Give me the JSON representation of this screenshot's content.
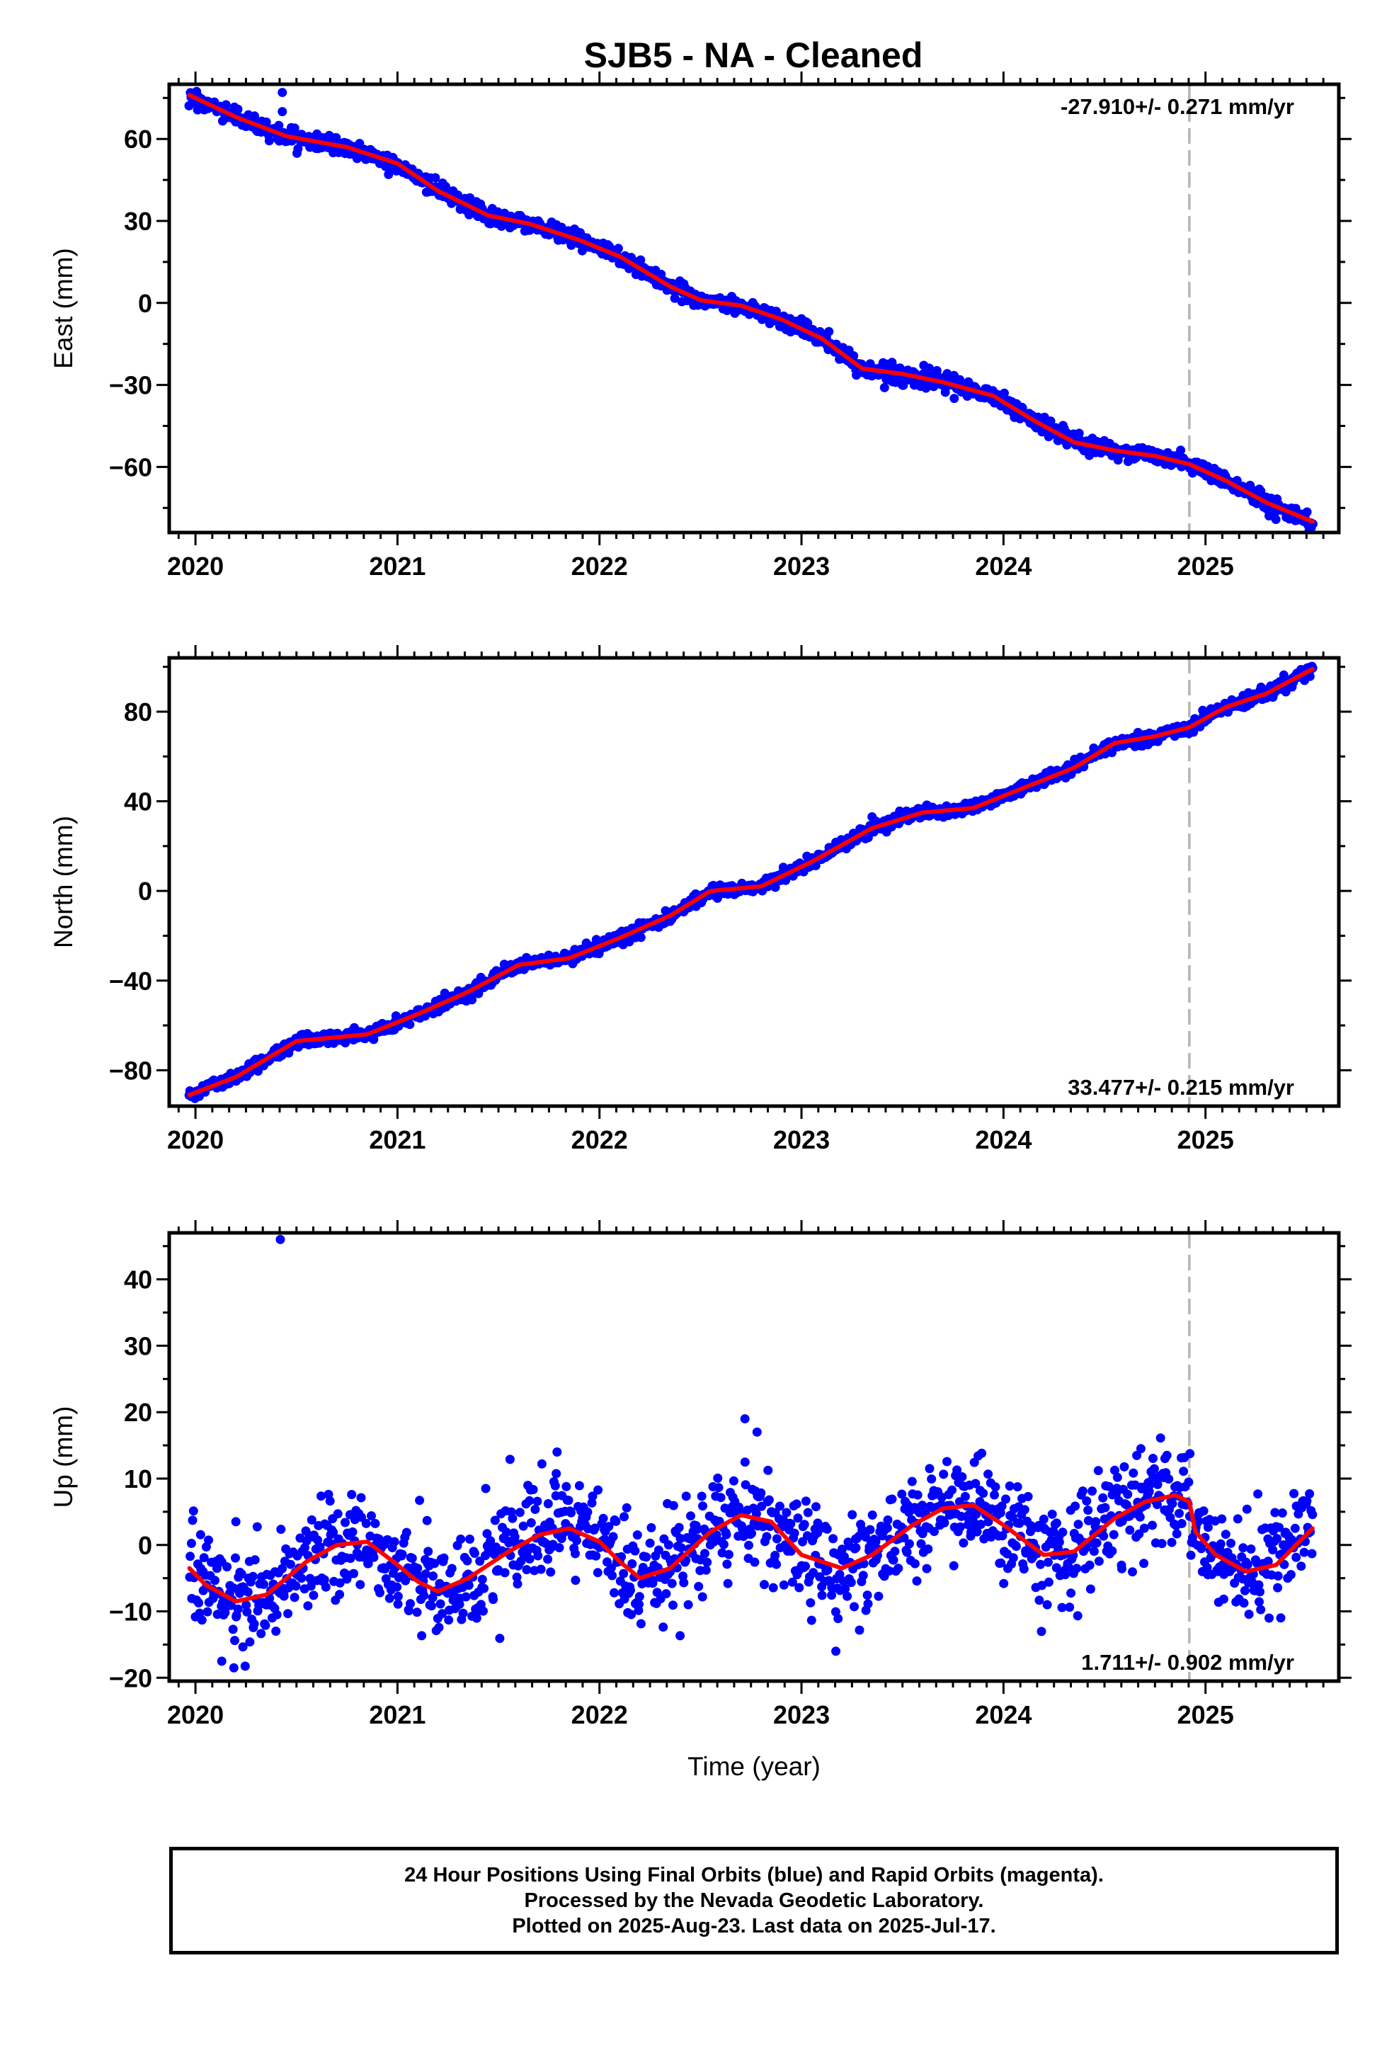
{
  "title": "SJB5  - NA - Cleaned",
  "colors": {
    "points": "#0000ff",
    "fit": "#ff0000",
    "vline": "#b5b5b5",
    "frame": "#000000"
  },
  "footer": {
    "lines": [
      "24 Hour Positions Using Final Orbits (blue) and Rapid Orbits (magenta).",
      "Processed by the Nevada Geodetic Laboratory.",
      "Plotted on 2025-Aug-23. Last data on 2025-Jul-17."
    ]
  },
  "chart_data": [
    {
      "type": "scatter",
      "ylabel": "East (mm)",
      "xlabel": "",
      "xlim": [
        2019.87,
        2025.66
      ],
      "ylim": [
        -84,
        80
      ],
      "xticks": [
        2020,
        2021,
        2022,
        2023,
        2024,
        2025
      ],
      "yticks": [
        -60,
        -30,
        0,
        30,
        60
      ],
      "yticks_minor": [
        -75,
        -45,
        -15,
        15,
        45,
        75
      ],
      "rate_label": "-27.910+/- 0.271 mm/yr",
      "rate_position": "top-right",
      "vline_x": 2024.92,
      "fit": {
        "name": "",
        "x": [
          2019.97,
          2020.2,
          2020.45,
          2020.75,
          2021.0,
          2021.2,
          2021.45,
          2021.65,
          2021.9,
          2022.1,
          2022.35,
          2022.5,
          2022.7,
          2022.9,
          2023.1,
          2023.3,
          2023.5,
          2023.7,
          2023.95,
          2024.15,
          2024.35,
          2024.55,
          2024.75,
          2024.92,
          2025.1,
          2025.3,
          2025.53
        ],
        "y": [
          76,
          68,
          61,
          57,
          51,
          41,
          32,
          29,
          23,
          17,
          6,
          1,
          -1,
          -6,
          -13,
          -24,
          -26,
          -29,
          -34,
          -43,
          -51,
          -54,
          -56,
          -59,
          -65,
          -73,
          -80
        ]
      },
      "outliers": [
        {
          "x": 2020.43,
          "y": 77
        },
        {
          "x": 2020.43,
          "y": 70
        }
      ],
      "scatter_noise": 1.4
    },
    {
      "type": "scatter",
      "ylabel": "North (mm)",
      "xlabel": "",
      "xlim": [
        2019.87,
        2025.66
      ],
      "ylim": [
        -96,
        104
      ],
      "xticks": [
        2020,
        2021,
        2022,
        2023,
        2024,
        2025
      ],
      "yticks": [
        -80,
        -40,
        0,
        40,
        80
      ],
      "yticks_minor": [
        -60,
        -20,
        20,
        60,
        100
      ],
      "rate_label": "33.477+/- 0.215 mm/yr",
      "rate_position": "bottom-right",
      "vline_x": 2024.92,
      "fit": {
        "name": "",
        "x": [
          2019.97,
          2020.2,
          2020.5,
          2020.85,
          2021.1,
          2021.35,
          2021.6,
          2021.85,
          2022.1,
          2022.35,
          2022.55,
          2022.8,
          2023.05,
          2023.35,
          2023.6,
          2023.85,
          2024.1,
          2024.35,
          2024.55,
          2024.75,
          2024.92,
          2025.1,
          2025.3,
          2025.53
        ],
        "y": [
          -91,
          -83,
          -67,
          -64,
          -55,
          -45,
          -33,
          -30,
          -21,
          -11,
          0,
          2,
          13,
          28,
          35,
          37,
          46,
          55,
          66,
          69,
          73,
          82,
          88,
          99
        ]
      },
      "outliers": [],
      "scatter_noise": 1.3
    },
    {
      "type": "scatter",
      "ylabel": "Up (mm)",
      "xlabel": "Time (year)",
      "xlim": [
        2019.87,
        2025.66
      ],
      "ylim": [
        -20.5,
        47
      ],
      "xticks": [
        2020,
        2021,
        2022,
        2023,
        2024,
        2025
      ],
      "yticks": [
        -20,
        -10,
        0,
        10,
        20,
        30,
        40
      ],
      "yticks_minor": [
        -15,
        -5,
        5,
        15,
        25,
        35,
        45
      ],
      "rate_label": "1.711+/- 0.902 mm/yr",
      "rate_position": "bottom-right",
      "vline_x": 2024.92,
      "fit": {
        "name": "",
        "x": [
          2019.97,
          2020.05,
          2020.2,
          2020.35,
          2020.55,
          2020.7,
          2020.85,
          2021.0,
          2021.1,
          2021.2,
          2021.35,
          2021.55,
          2021.7,
          2021.85,
          2022.0,
          2022.1,
          2022.2,
          2022.35,
          2022.55,
          2022.7,
          2022.85,
          2023.0,
          2023.2,
          2023.35,
          2023.55,
          2023.7,
          2023.85,
          2024.0,
          2024.2,
          2024.35,
          2024.55,
          2024.7,
          2024.85,
          2024.92,
          2024.95,
          2025.05,
          2025.2,
          2025.35,
          2025.53
        ],
        "y": [
          -3.5,
          -6,
          -8.5,
          -7.5,
          -2.5,
          0,
          0.5,
          -3,
          -5.5,
          -7,
          -5,
          -1,
          1.5,
          2.5,
          0.5,
          -2.5,
          -5,
          -3.5,
          2,
          4.5,
          3.5,
          -1.5,
          -3.5,
          -1.5,
          3,
          5.5,
          6,
          3,
          -1.5,
          -1,
          4,
          6.5,
          7.5,
          6.5,
          2,
          -1.5,
          -4,
          -3,
          2.5
        ]
      },
      "outliers": [
        {
          "x": 2020.42,
          "y": 46
        },
        {
          "x": 2022.72,
          "y": 19
        },
        {
          "x": 2022.78,
          "y": 17
        },
        {
          "x": 2021.79,
          "y": 14
        },
        {
          "x": 2024.68,
          "y": 14.5
        },
        {
          "x": 2023.17,
          "y": -16
        },
        {
          "x": 2020.19,
          "y": -18.5
        },
        {
          "x": 2020.13,
          "y": -17.5
        },
        {
          "x": 2020.2,
          "y": 3.5
        }
      ],
      "scatter_noise": 3.8
    }
  ]
}
